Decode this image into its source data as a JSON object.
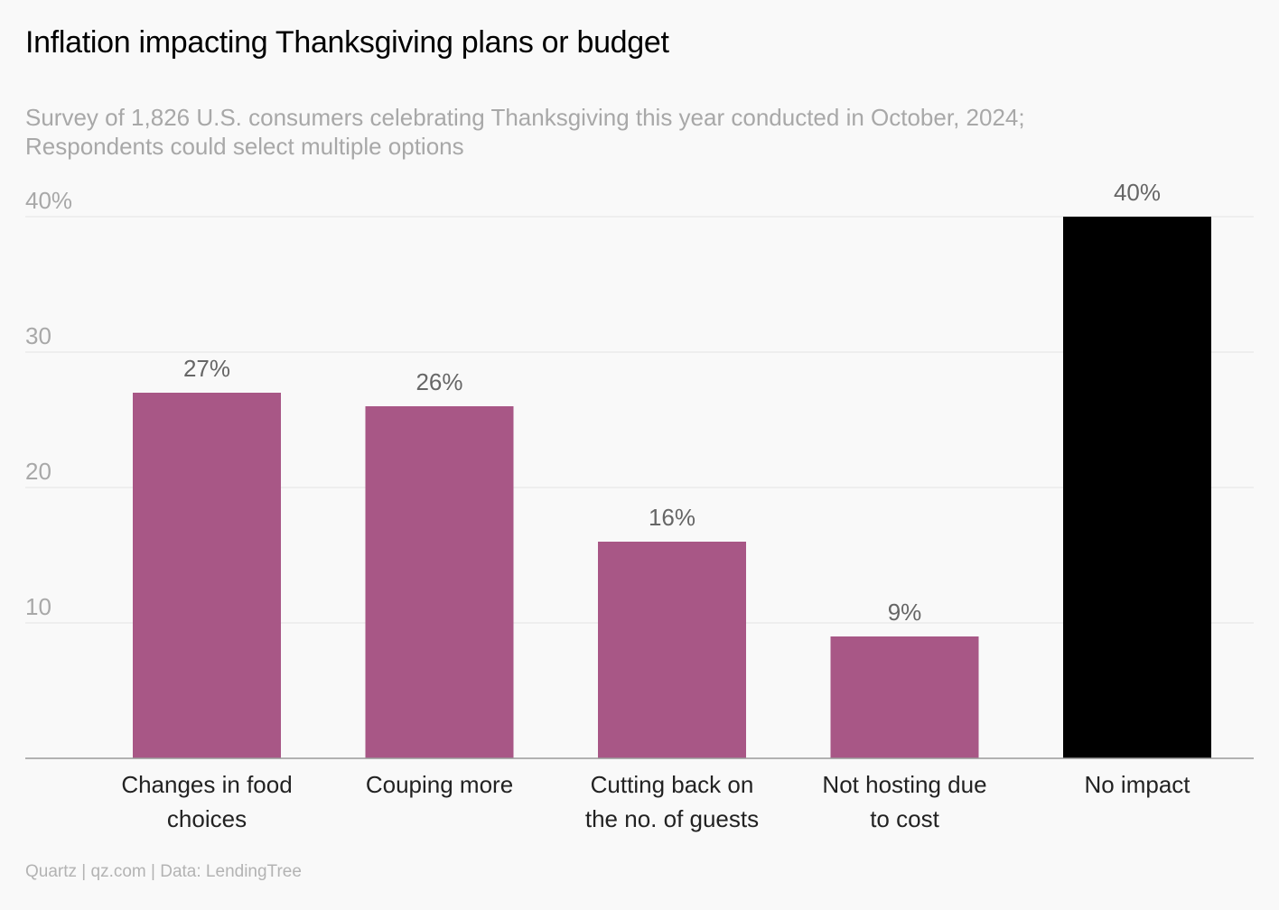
{
  "title": "Inflation impacting Thanksgiving plans or budget",
  "subtitle": [
    "Survey of 1,826 U.S. consumers celebrating Thanksgiving this year conducted in October, 2024;",
    "Respondents could select multiple options"
  ],
  "footer": "Quartz | qz.com | Data: LendingTree",
  "colors": {
    "bar": "#a85786",
    "highlight": "#000000",
    "grid": "#e4e4e4",
    "axis": "#9a9a9a",
    "tick_text": "#a8a8a8",
    "value_text": "#666666",
    "category_text": "#222222"
  },
  "chart_data": {
    "type": "bar",
    "categories": [
      [
        "Changes in food",
        "choices"
      ],
      [
        "Couping more"
      ],
      [
        "Cutting back on",
        "the no. of guests"
      ],
      [
        "Not hosting due",
        "to cost"
      ],
      [
        "No impact"
      ]
    ],
    "values": [
      27,
      26,
      16,
      9,
      40
    ],
    "value_labels": [
      "27%",
      "26%",
      "16%",
      "9%",
      "40%"
    ],
    "highlighted_index": 4,
    "ylim": [
      0,
      40
    ],
    "yticks": [
      10,
      20,
      30,
      40
    ],
    "ytick_labels": [
      "10",
      "20",
      "30",
      "40%"
    ],
    "grid": true,
    "xlabel": "",
    "ylabel": ""
  }
}
